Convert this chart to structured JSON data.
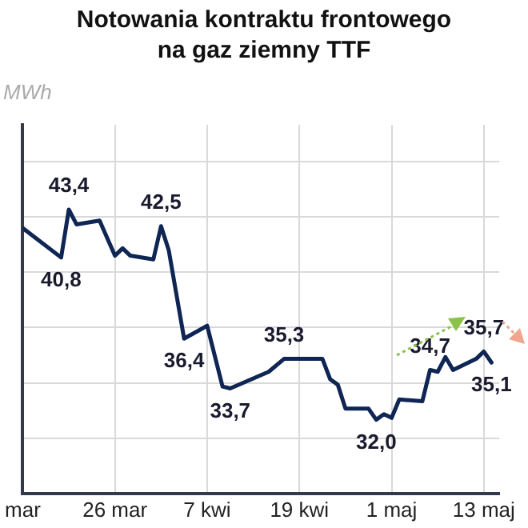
{
  "chart_data": {
    "type": "line",
    "title": "Notowania kontraktu frontowego na gaz ziemny TTF",
    "ylabel": "MWh",
    "x": [
      "--03-14",
      "--03-19",
      "--03-20",
      "--03-21",
      "--03-24",
      "--03-26",
      "--03-27",
      "--03-28",
      "--03-31",
      "--04-01",
      "--04-02",
      "--04-04",
      "--04-07",
      "--04-09",
      "--04-10",
      "--04-15",
      "--04-17",
      "--04-22",
      "--04-23",
      "--04-24",
      "--04-25",
      "--04-28",
      "--04-29",
      "--04-30",
      "--05-01",
      "--05-02",
      "--05-05",
      "--05-06",
      "--05-07",
      "--05-08",
      "--05-09",
      "--05-12",
      "--05-13",
      "--05-14"
    ],
    "series": [
      {
        "color": "#0f2553",
        "values": [
          42.4,
          40.8,
          43.4,
          42.6,
          42.8,
          40.9,
          41.3,
          40.9,
          40.7,
          42.5,
          41.2,
          36.4,
          37.1,
          33.8,
          33.7,
          34.6,
          35.3,
          35.3,
          34.2,
          33.9,
          32.6,
          32.6,
          32.0,
          32.3,
          32.1,
          33.1,
          33.0,
          34.7,
          34.6,
          35.4,
          34.7,
          35.3,
          35.7,
          35.1
        ],
        "value_labels": [
          null,
          "40,8",
          "43,4",
          null,
          null,
          null,
          null,
          null,
          null,
          "42,5",
          null,
          "36,4",
          null,
          null,
          "33,7",
          null,
          "35,3",
          null,
          null,
          null,
          null,
          null,
          "32,0",
          null,
          null,
          null,
          null,
          "34,7",
          null,
          null,
          null,
          null,
          "35,7",
          "35,1"
        ]
      }
    ],
    "xlim": [
      "--03-14",
      "--05-15"
    ],
    "xticks": [
      {
        "value": "--03-14",
        "label": "mar"
      },
      {
        "value": "--03-26",
        "label": "26 mar"
      },
      {
        "value": "--04-07",
        "label": "7 kwi"
      },
      {
        "value": "--04-19",
        "label": "19 kwi"
      },
      {
        "value": "--05-01",
        "label": "1 maj"
      },
      {
        "value": "--05-13",
        "label": "13 maj"
      }
    ],
    "ylim": [
      28,
      48
    ],
    "yticks": [
      {
        "value": 31,
        "label": null
      },
      {
        "value": 34,
        "label": null
      },
      {
        "value": 37,
        "label": null
      },
      {
        "value": 40,
        "label": null
      },
      {
        "value": 43,
        "label": null
      },
      {
        "value": 46,
        "label": null
      }
    ],
    "grid": true,
    "tick_labels": "x"
  }
}
